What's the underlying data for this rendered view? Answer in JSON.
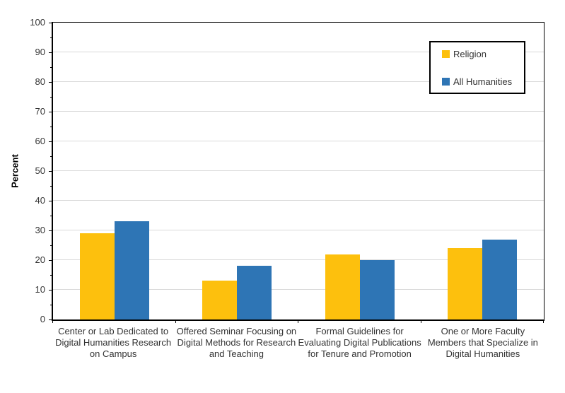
{
  "chart_data": {
    "type": "bar",
    "title": "",
    "ylabel": "Percent",
    "xlabel": "",
    "ylim": [
      0,
      100
    ],
    "y_major_step": 10,
    "y_minor_step": 5,
    "grid": "horizontal major gridlines only",
    "legend_position": "top-right inside plot, boxed",
    "categories": [
      "Center or Lab Dedicated to Digital Humanities Research on Campus",
      "Offered Seminar Focusing on Digital Methods for Research and Teaching",
      "Formal Guidelines for Evaluating Digital Publications for Tenure and Promotion",
      "One or More Faculty Members that Specialize in Digital Humanities"
    ],
    "series": [
      {
        "name": "Religion",
        "color": "#FDC00D",
        "values": [
          29,
          13,
          22,
          24
        ]
      },
      {
        "name": "All Humanities",
        "color": "#2E75B5",
        "values": [
          33,
          18,
          20,
          27
        ]
      }
    ]
  },
  "colors": {
    "gridline": "#D9D9D9",
    "axis": "#000000",
    "text": "#333333",
    "background": "#FFFFFF"
  }
}
